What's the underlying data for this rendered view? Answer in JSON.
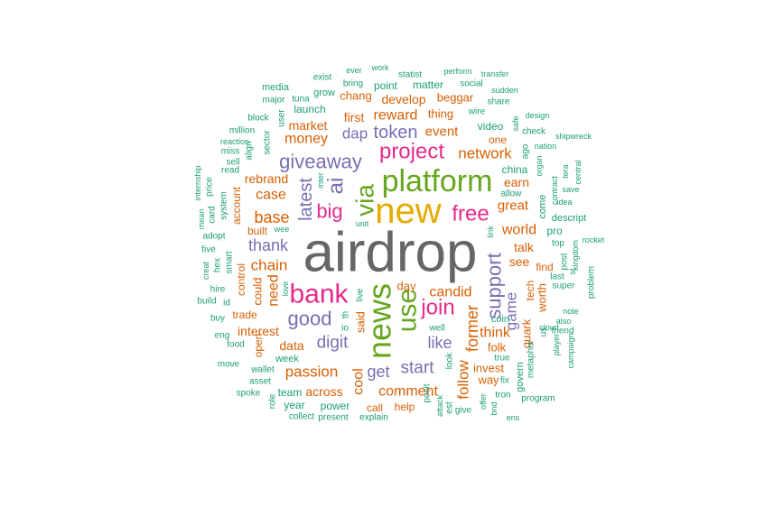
{
  "palette": {
    "gray": "#666666",
    "teal": "#1b9e77",
    "orange": "#d95f02",
    "purple": "#7570b3",
    "pink": "#e7298a",
    "green": "#66a61e",
    "gold": "#e6ab02"
  },
  "words": [
    {
      "t": "airdrop",
      "c": "gray"
    },
    {
      "t": "new",
      "c": "gold"
    },
    {
      "t": "platform",
      "c": "green"
    },
    {
      "t": "news",
      "c": "green"
    },
    {
      "t": "bank",
      "c": "pink"
    },
    {
      "t": "use",
      "c": "green"
    },
    {
      "t": "via",
      "c": "green"
    },
    {
      "t": "project",
      "c": "pink"
    },
    {
      "t": "free",
      "c": "pink"
    },
    {
      "t": "join",
      "c": "pink"
    },
    {
      "t": "ai",
      "c": "purple"
    },
    {
      "t": "giveaway",
      "c": "purple"
    },
    {
      "t": "token",
      "c": "purple"
    },
    {
      "t": "big",
      "c": "pink"
    },
    {
      "t": "latest",
      "c": "purple"
    },
    {
      "t": "support",
      "c": "purple"
    },
    {
      "t": "good",
      "c": "purple"
    },
    {
      "t": "network",
      "c": "orange"
    },
    {
      "t": "base",
      "c": "orange"
    },
    {
      "t": "thank",
      "c": "purple"
    },
    {
      "t": "chain",
      "c": "orange"
    },
    {
      "t": "digit",
      "c": "purple"
    },
    {
      "t": "start",
      "c": "purple"
    },
    {
      "t": "like",
      "c": "purple"
    },
    {
      "t": "passion",
      "c": "orange"
    },
    {
      "t": "get",
      "c": "purple"
    },
    {
      "t": "comment",
      "c": "orange"
    },
    {
      "t": "former",
      "c": "orange"
    },
    {
      "t": "game",
      "c": "purple"
    },
    {
      "t": "world",
      "c": "orange"
    },
    {
      "t": "case",
      "c": "orange"
    },
    {
      "t": "money",
      "c": "orange"
    },
    {
      "t": "dap",
      "c": "purple"
    },
    {
      "t": "reward",
      "c": "orange"
    },
    {
      "t": "candid",
      "c": "orange"
    },
    {
      "t": "follow",
      "c": "orange"
    },
    {
      "t": "think",
      "c": "orange"
    },
    {
      "t": "great",
      "c": "orange"
    },
    {
      "t": "earn",
      "c": "orange"
    },
    {
      "t": "event",
      "c": "orange"
    },
    {
      "t": "rebrand",
      "c": "orange"
    },
    {
      "t": "need",
      "c": "orange"
    },
    {
      "t": "data",
      "c": "orange"
    },
    {
      "t": "cool",
      "c": "orange"
    },
    {
      "t": "talk",
      "c": "orange"
    },
    {
      "t": "see",
      "c": "orange"
    },
    {
      "t": "interest",
      "c": "orange"
    },
    {
      "t": "across",
      "c": "orange"
    },
    {
      "t": "develop",
      "c": "orange"
    },
    {
      "t": "market",
      "c": "orange"
    },
    {
      "t": "first",
      "c": "orange"
    },
    {
      "t": "thing",
      "c": "orange"
    },
    {
      "t": "chang",
      "c": "orange"
    },
    {
      "t": "beggar",
      "c": "orange"
    },
    {
      "t": "launch",
      "c": "teal"
    },
    {
      "t": "point",
      "c": "teal"
    },
    {
      "t": "matter",
      "c": "teal"
    },
    {
      "t": "china",
      "c": "teal"
    },
    {
      "t": "video",
      "c": "teal"
    },
    {
      "t": "one",
      "c": "orange"
    },
    {
      "t": "could",
      "c": "orange"
    },
    {
      "t": "said",
      "c": "orange"
    },
    {
      "t": "day",
      "c": "orange"
    },
    {
      "t": "worth",
      "c": "orange"
    },
    {
      "t": "quark",
      "c": "orange"
    },
    {
      "t": "folk",
      "c": "orange"
    },
    {
      "t": "invest",
      "c": "orange"
    },
    {
      "t": "way",
      "c": "orange"
    },
    {
      "t": "tech",
      "c": "orange"
    },
    {
      "t": "find",
      "c": "orange"
    },
    {
      "t": "built",
      "c": "orange"
    },
    {
      "t": "account",
      "c": "orange"
    },
    {
      "t": "trade",
      "c": "orange"
    },
    {
      "t": "open",
      "c": "orange"
    },
    {
      "t": "control",
      "c": "orange"
    },
    {
      "t": "call",
      "c": "orange"
    },
    {
      "t": "help",
      "c": "orange"
    },
    {
      "t": "power",
      "c": "teal"
    },
    {
      "t": "team",
      "c": "teal"
    },
    {
      "t": "year",
      "c": "teal"
    },
    {
      "t": "week",
      "c": "teal"
    },
    {
      "t": "well",
      "c": "teal"
    },
    {
      "t": "coin",
      "c": "teal"
    },
    {
      "t": "govern",
      "c": "teal"
    },
    {
      "t": "come",
      "c": "teal"
    },
    {
      "t": "pro",
      "c": "teal"
    },
    {
      "t": "top",
      "c": "teal"
    },
    {
      "t": "descript",
      "c": "teal"
    },
    {
      "t": "allow",
      "c": "teal"
    },
    {
      "t": "link",
      "c": "teal"
    },
    {
      "t": "unit",
      "c": "teal"
    },
    {
      "t": "wee",
      "c": "teal"
    },
    {
      "t": "inter",
      "c": "teal"
    },
    {
      "t": "grow",
      "c": "teal"
    },
    {
      "t": "media",
      "c": "teal"
    },
    {
      "t": "tuna",
      "c": "teal"
    },
    {
      "t": "exist",
      "c": "teal"
    },
    {
      "t": "bring",
      "c": "teal"
    },
    {
      "t": "ever",
      "c": "teal"
    },
    {
      "t": "work",
      "c": "teal"
    },
    {
      "t": "statist",
      "c": "teal"
    },
    {
      "t": "perform",
      "c": "teal"
    },
    {
      "t": "transfer",
      "c": "teal"
    },
    {
      "t": "social",
      "c": "teal"
    },
    {
      "t": "sudden",
      "c": "teal"
    },
    {
      "t": "share",
      "c": "teal"
    },
    {
      "t": "wire",
      "c": "teal"
    },
    {
      "t": "safe",
      "c": "teal"
    },
    {
      "t": "design",
      "c": "teal"
    },
    {
      "t": "check",
      "c": "teal"
    },
    {
      "t": "shipwreck",
      "c": "teal"
    },
    {
      "t": "nation",
      "c": "teal"
    },
    {
      "t": "ago",
      "c": "teal"
    },
    {
      "t": "organ",
      "c": "teal"
    },
    {
      "t": "tera",
      "c": "teal"
    },
    {
      "t": "central",
      "c": "teal"
    },
    {
      "t": "save",
      "c": "teal"
    },
    {
      "t": "idea",
      "c": "teal"
    },
    {
      "t": "contract",
      "c": "teal"
    },
    {
      "t": "major",
      "c": "teal"
    },
    {
      "t": "user",
      "c": "teal"
    },
    {
      "t": "block",
      "c": "teal"
    },
    {
      "t": "million",
      "c": "teal"
    },
    {
      "t": "sector",
      "c": "teal"
    },
    {
      "t": "reaction",
      "c": "teal"
    },
    {
      "t": "miss",
      "c": "teal"
    },
    {
      "t": "align",
      "c": "teal"
    },
    {
      "t": "sell",
      "c": "teal"
    },
    {
      "t": "read",
      "c": "teal"
    },
    {
      "t": "internship",
      "c": "teal"
    },
    {
      "t": "price",
      "c": "teal"
    },
    {
      "t": "system",
      "c": "teal"
    },
    {
      "t": "mean",
      "c": "teal"
    },
    {
      "t": "card",
      "c": "teal"
    },
    {
      "t": "adopt",
      "c": "teal"
    },
    {
      "t": "five",
      "c": "teal"
    },
    {
      "t": "hex",
      "c": "teal"
    },
    {
      "t": "smart",
      "c": "teal"
    },
    {
      "t": "creat",
      "c": "teal"
    },
    {
      "t": "hire",
      "c": "teal"
    },
    {
      "t": "build",
      "c": "teal"
    },
    {
      "t": "id",
      "c": "teal"
    },
    {
      "t": "buy",
      "c": "teal"
    },
    {
      "t": "eng",
      "c": "teal"
    },
    {
      "t": "food",
      "c": "teal"
    },
    {
      "t": "move",
      "c": "teal"
    },
    {
      "t": "wallet",
      "c": "teal"
    },
    {
      "t": "asset",
      "c": "teal"
    },
    {
      "t": "spoke",
      "c": "teal"
    },
    {
      "t": "role",
      "c": "teal"
    },
    {
      "t": "collect",
      "c": "teal"
    },
    {
      "t": "present",
      "c": "teal"
    },
    {
      "t": "explain",
      "c": "teal"
    },
    {
      "t": "love",
      "c": "teal"
    },
    {
      "t": "io",
      "c": "teal"
    },
    {
      "t": "th",
      "c": "teal"
    },
    {
      "t": "live",
      "c": "teal"
    },
    {
      "t": "look",
      "c": "teal"
    },
    {
      "t": "true",
      "c": "teal"
    },
    {
      "t": "fix",
      "c": "teal"
    },
    {
      "t": "tron",
      "c": "teal"
    },
    {
      "t": "offer",
      "c": "teal"
    },
    {
      "t": "give",
      "c": "teal"
    },
    {
      "t": "attack",
      "c": "teal"
    },
    {
      "t": "est",
      "c": "teal"
    },
    {
      "t": "posit",
      "c": "teal"
    },
    {
      "t": "bnd",
      "c": "teal"
    },
    {
      "t": "program",
      "c": "teal"
    },
    {
      "t": "metaphor",
      "c": "teal"
    },
    {
      "t": "us",
      "c": "teal"
    },
    {
      "t": "player",
      "c": "teal"
    },
    {
      "t": "campaign",
      "c": "teal"
    },
    {
      "t": "also",
      "c": "teal"
    },
    {
      "t": "cloud",
      "c": "teal"
    },
    {
      "t": "note",
      "c": "teal"
    },
    {
      "t": "friend",
      "c": "teal"
    },
    {
      "t": "super",
      "c": "teal"
    },
    {
      "t": "last",
      "c": "teal"
    },
    {
      "t": "post",
      "c": "teal"
    },
    {
      "t": "kingdom",
      "c": "teal"
    },
    {
      "t": "st",
      "c": "teal"
    },
    {
      "t": "problem",
      "c": "teal"
    },
    {
      "t": "rocket",
      "c": "teal"
    },
    {
      "t": "ens",
      "c": "teal"
    }
  ]
}
